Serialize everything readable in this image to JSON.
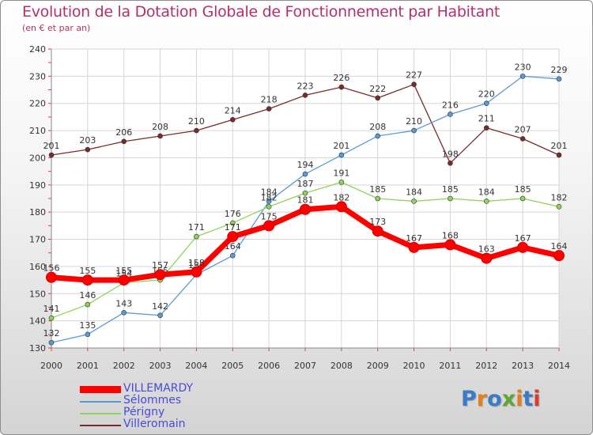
{
  "title": "Evolution de la Dotation Globale de Fonctionnement par Habitant",
  "subtitle": "(en € et par an)",
  "brand": {
    "text": "Proxiti",
    "letter_colors": [
      "#3a7bc8",
      "#e37f1e",
      "#3a7bc8",
      "#5da832",
      "#e37f1e",
      "#3a7bc8",
      "#d93a2c"
    ]
  },
  "chart_data": {
    "type": "line",
    "x": [
      2000,
      2001,
      2002,
      2003,
      2004,
      2005,
      2006,
      2007,
      2008,
      2009,
      2010,
      2011,
      2012,
      2013,
      2014
    ],
    "ylim": [
      130,
      240
    ],
    "yticks": [
      130,
      140,
      150,
      160,
      170,
      180,
      190,
      200,
      210,
      220,
      230,
      240
    ],
    "grid": true,
    "legend_position": "bottom-left",
    "series": [
      {
        "name": "Villeromain",
        "color": "#7b2b2b",
        "values": [
          201,
          203,
          206,
          208,
          210,
          214,
          218,
          223,
          226,
          222,
          227,
          198,
          211,
          207,
          201
        ]
      },
      {
        "name": "Sélommes",
        "color": "#5b9bd5",
        "values": [
          132,
          135,
          143,
          142,
          157,
          164,
          184,
          194,
          201,
          208,
          210,
          216,
          220,
          230,
          229
        ]
      },
      {
        "name": "Périgny",
        "color": "#8fd45a",
        "values": [
          141,
          146,
          154,
          155,
          171,
          176,
          182,
          187,
          191,
          185,
          184,
          185,
          184,
          185,
          182
        ]
      },
      {
        "name": "VILLEMARDY",
        "color": "#ff0000",
        "values": [
          156,
          155,
          155,
          157,
          158,
          171,
          175,
          181,
          182,
          173,
          167,
          168,
          163,
          167,
          164
        ]
      }
    ],
    "legend_order": [
      "VILLEMARDY",
      "Sélommes",
      "Périgny",
      "Villeromain"
    ]
  }
}
